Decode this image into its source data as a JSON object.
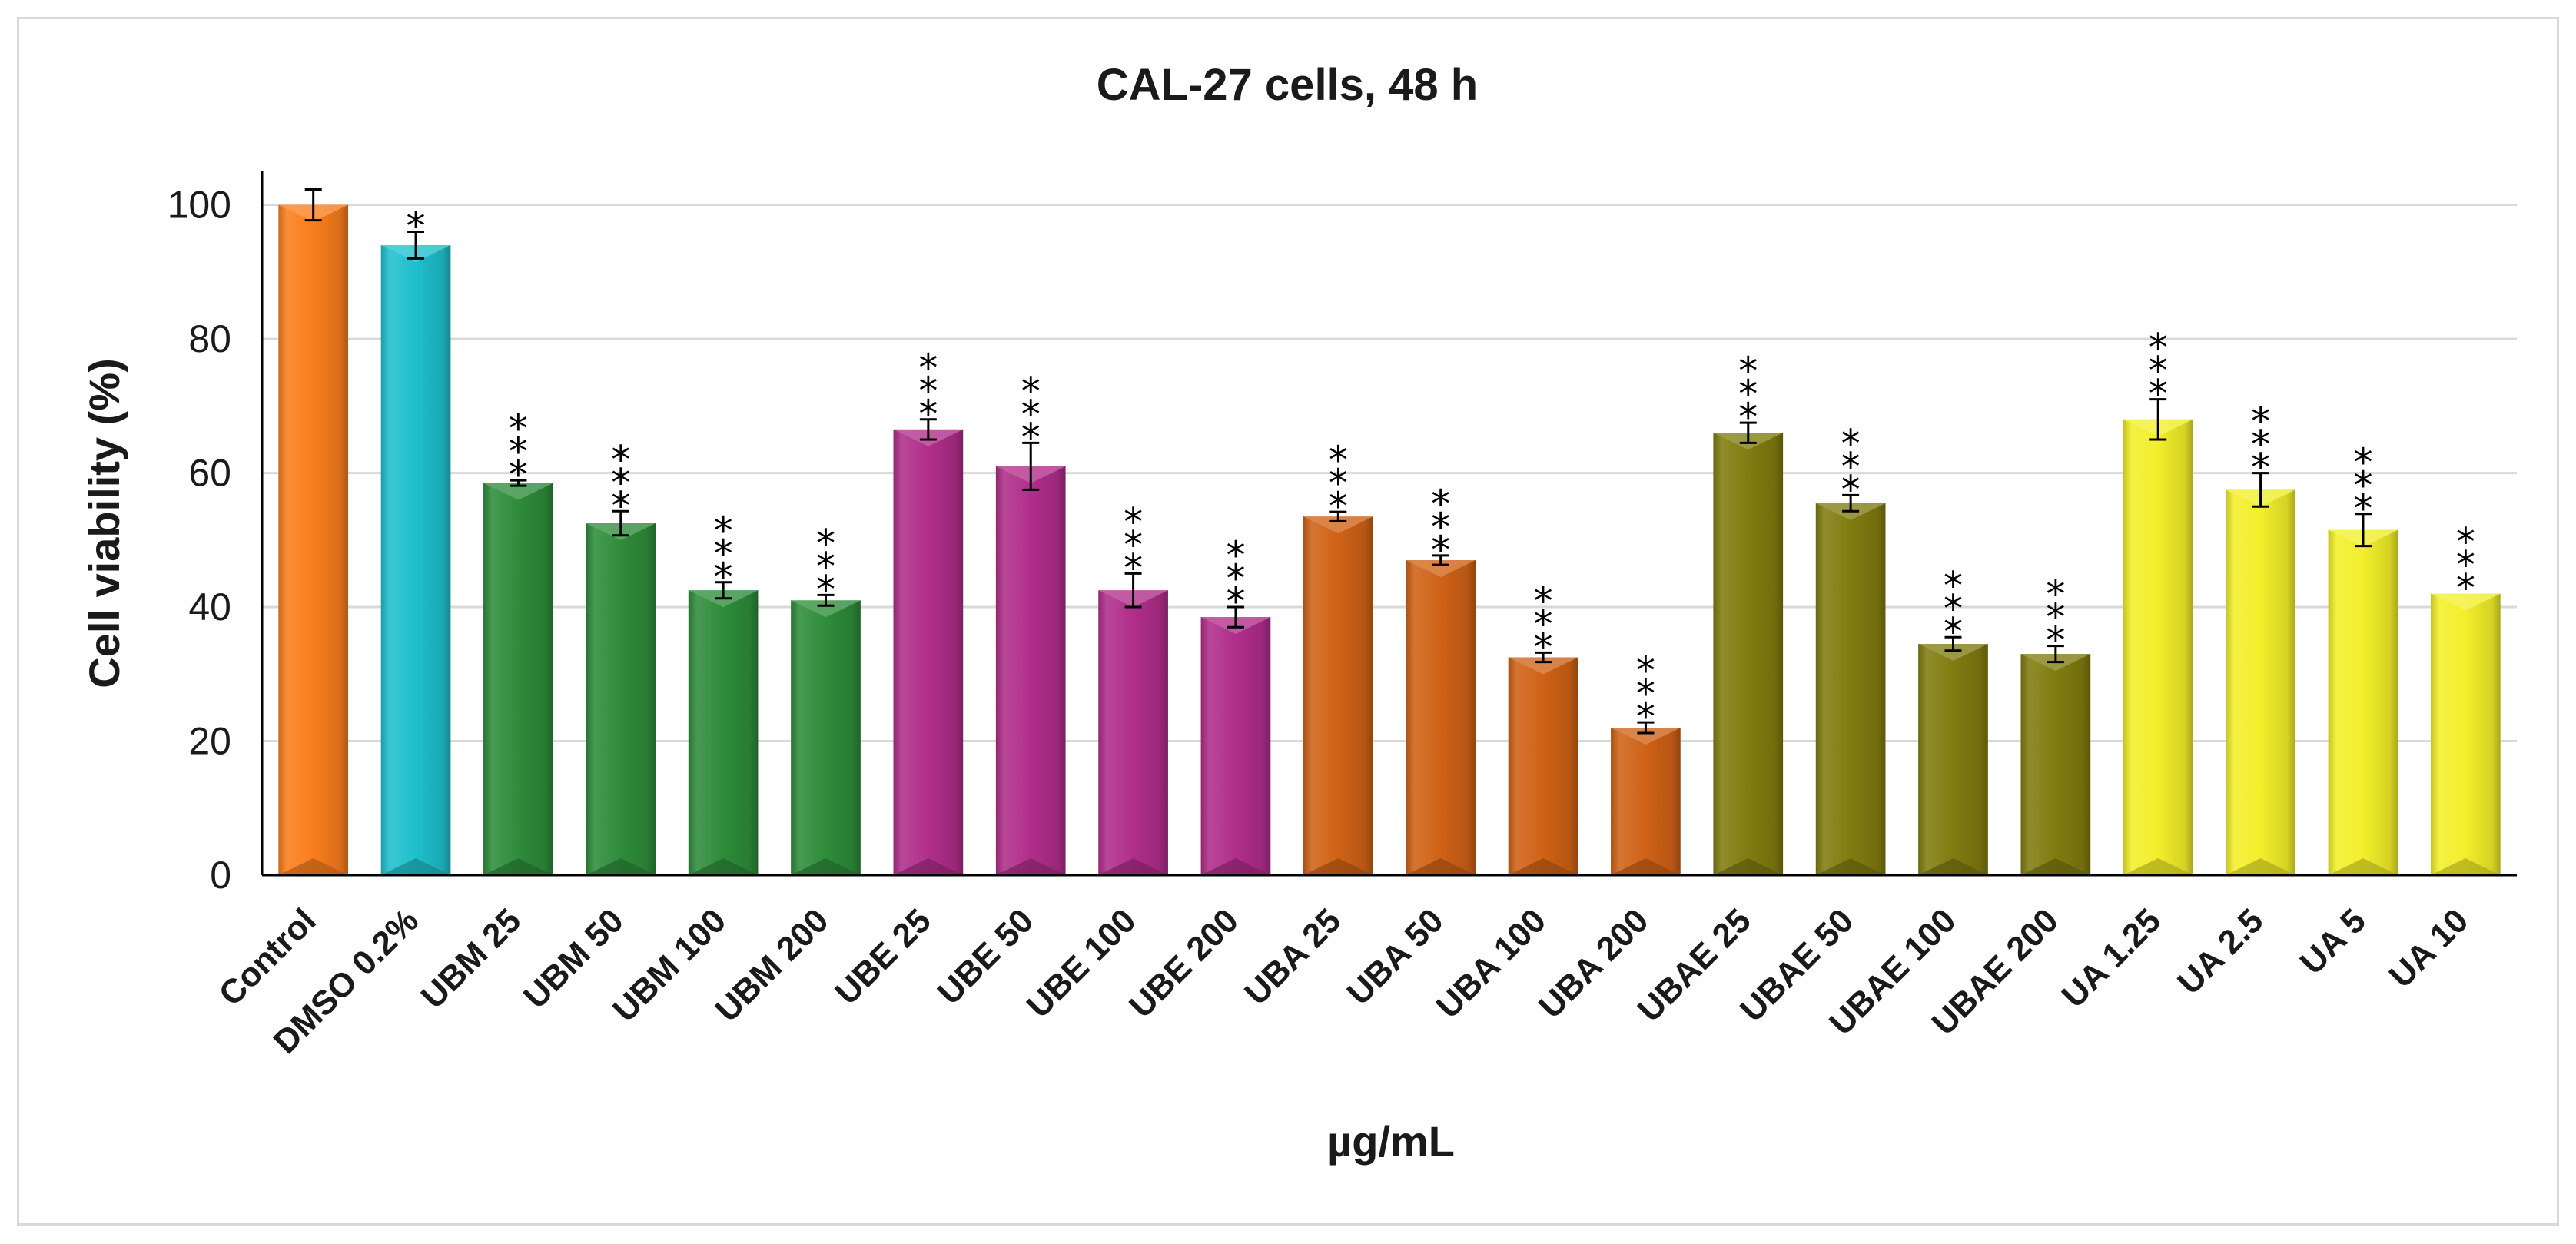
{
  "chart_data": {
    "type": "bar",
    "title": "CAL-27 cells, 48 h",
    "xlabel": "µg/mL",
    "ylabel": "Cell viability  (%)",
    "ylim": [
      0,
      105
    ],
    "yticks": [
      0,
      20,
      40,
      60,
      80,
      100
    ],
    "grid": true,
    "categories": [
      "Control",
      "DMSO 0.2%",
      "UBM 25",
      "UBM 50",
      "UBM 100",
      "UBM 200",
      "UBE 25",
      "UBE 50",
      "UBE 100",
      "UBE 200",
      "UBA 25",
      "UBA 50",
      "UBA 100",
      "UBA 200",
      "UBAE 25",
      "UBAE 50",
      "UBAE 100",
      "UBAE 200",
      "UA 1.25",
      "UA 2.5",
      "UA 5",
      "UA 10"
    ],
    "values": [
      100,
      94,
      58.5,
      52.5,
      42.5,
      41,
      66.5,
      61,
      42.5,
      38.5,
      53.5,
      47,
      32.5,
      22,
      66,
      55.5,
      34.5,
      33,
      68,
      57.5,
      51.5,
      42
    ],
    "errors": [
      2.3,
      2.0,
      0.4,
      1.8,
      1.2,
      0.8,
      1.5,
      3.5,
      2.5,
      1.5,
      0.7,
      0.7,
      0.7,
      0.8,
      1.5,
      1.2,
      1.0,
      1.2,
      3.0,
      2.5,
      2.4,
      0
    ],
    "significance": [
      "",
      "*",
      "***",
      "***",
      "***",
      "***",
      "***",
      "***",
      "***",
      "***",
      "***",
      "***",
      "***",
      "***",
      "***",
      "***",
      "***",
      "***",
      "***",
      "***",
      "***",
      "***"
    ],
    "colors": [
      "#f97d1c",
      "#1fbfcc",
      "#2e8c3a",
      "#2e8c3a",
      "#2e8c3a",
      "#2e8c3a",
      "#b02e8a",
      "#b02e8a",
      "#b02e8a",
      "#b02e8a",
      "#cf6216",
      "#cf6216",
      "#cf6216",
      "#cf6216",
      "#807c10",
      "#807c10",
      "#807c10",
      "#807c10",
      "#f2ef2a",
      "#f2ef2a",
      "#f2ef2a",
      "#f2ef2a"
    ]
  }
}
